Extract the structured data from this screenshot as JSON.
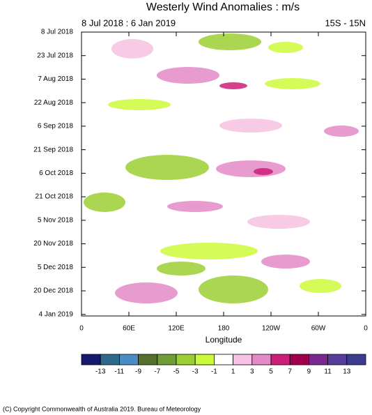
{
  "chart_data": {
    "type": "hovmoller",
    "title": "Westerly Wind Anomalies : m/s",
    "subtitle_left": "8 Jul 2018 : 6 Jan 2019",
    "subtitle_right": "15S - 15N",
    "x_label": "Longitude",
    "xlim": [
      0,
      360
    ],
    "xticks": [
      0,
      {
        "value": 60,
        "label": "60E"
      },
      {
        "value": 120,
        "label": "120E"
      },
      180,
      {
        "value": 240,
        "label": "120W"
      },
      {
        "value": 300,
        "label": "60W"
      },
      {
        "value": 360,
        "label": "0"
      }
    ],
    "ylim": [
      "2018-07-08",
      "2019-01-05"
    ],
    "yticks": [
      {
        "value": "2018-07-08",
        "label": "8 Jul 2018"
      },
      {
        "value": "2018-07-23",
        "label": "23 Jul 2018"
      },
      {
        "value": "2018-08-07",
        "label": "7 Aug 2018"
      },
      {
        "value": "2018-08-22",
        "label": "22 Aug 2018"
      },
      {
        "value": "2018-09-06",
        "label": "6 Sep 2018"
      },
      {
        "value": "2018-09-21",
        "label": "21 Sep 2018"
      },
      {
        "value": "2018-10-06",
        "label": "6 Oct 2018"
      },
      {
        "value": "2018-10-21",
        "label": "21 Oct 2018"
      },
      {
        "value": "2018-11-05",
        "label": "5 Nov 2018"
      },
      {
        "value": "2018-11-20",
        "label": "20 Nov 2018"
      },
      {
        "value": "2018-12-05",
        "label": "5 Dec 2018"
      },
      {
        "value": "2018-12-20",
        "label": "20 Dec 2018"
      },
      {
        "value": "2019-01-04",
        "label": "4 Jan 2019"
      }
    ],
    "colorbar": {
      "levels": [
        -13,
        -11,
        -9,
        -7,
        -5,
        -3,
        -1,
        1,
        3,
        5,
        7,
        9,
        11,
        13
      ],
      "colors": [
        "#161a6e",
        "#2e6a8c",
        "#4a8cc4",
        "#55702c",
        "#6e9e35",
        "#9ccf34",
        "#ccfa3a",
        "#ffffff",
        "#f6c2e2",
        "#e48ac6",
        "#cc1f78",
        "#a0004c",
        "#7a2890",
        "#583c9c",
        "#3a3c90"
      ]
    },
    "copyright": "(C) Copyright Commonwealth of Australia 2019. Bureau of Meteorology"
  }
}
